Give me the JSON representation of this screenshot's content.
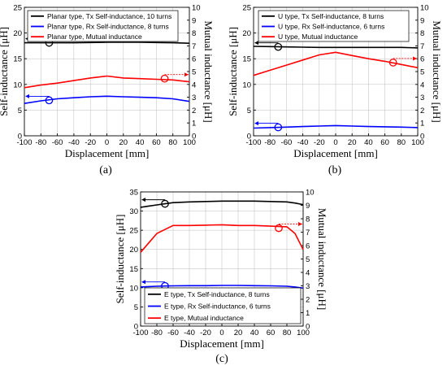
{
  "chart_data": [
    {
      "type": "line",
      "caption": "(a)",
      "xlabel": "Displacement [mm]",
      "ylabel": "Self-inductance [μH]",
      "y2label": "Mutual inductance [μH]",
      "xlim": [
        -100,
        100
      ],
      "ylim": [
        0,
        25
      ],
      "y2lim": [
        0,
        10
      ],
      "xticks": [
        -100,
        -80,
        -60,
        -40,
        -20,
        0,
        20,
        40,
        60,
        80,
        100
      ],
      "yticks": [
        0,
        5,
        10,
        15,
        20,
        25
      ],
      "y2ticks": [
        0,
        1,
        2,
        3,
        4,
        5,
        6,
        7,
        8,
        9,
        10
      ],
      "legend_position": "top-left",
      "x": [
        -100,
        -80,
        -60,
        -40,
        -20,
        0,
        20,
        40,
        60,
        80,
        100
      ],
      "series": [
        {
          "name": "Planar type, Tx Self-inductance, 10 turns",
          "color": "#000000",
          "axis": "left",
          "values": [
            18.1,
            18.1,
            18.1,
            18.1,
            18.15,
            18.2,
            18.2,
            18.2,
            18.15,
            18.1,
            18.0
          ]
        },
        {
          "name": "Planar type, Rx Self-inductance, 8 turns",
          "color": "#0000ff",
          "axis": "left",
          "values": [
            6.3,
            6.8,
            7.2,
            7.4,
            7.6,
            7.7,
            7.6,
            7.5,
            7.4,
            7.2,
            6.7
          ]
        },
        {
          "name": "Planar type, Mutual inductance",
          "color": "#ff0000",
          "axis": "right",
          "values": [
            3.75,
            3.95,
            4.1,
            4.3,
            4.5,
            4.65,
            4.5,
            4.45,
            4.4,
            4.35,
            4.2
          ]
        }
      ],
      "markers": [
        {
          "x": -70,
          "y": 18.1,
          "color": "#000000",
          "arrow": "left"
        },
        {
          "x": -70,
          "y": 6.9,
          "color": "#0000ff",
          "arrow": "left"
        },
        {
          "x": 70,
          "y": 4.45,
          "color": "#ff0000",
          "arrow": "right",
          "axis": "right"
        }
      ]
    },
    {
      "type": "line",
      "caption": "(b)",
      "xlabel": "Displacement [mm]",
      "ylabel": "Self-inductance [μH]",
      "y2label": "Mutual inductance [μH]",
      "xlim": [
        -100,
        100
      ],
      "ylim": [
        0,
        25
      ],
      "y2lim": [
        0,
        10
      ],
      "xticks": [
        -100,
        -80,
        -60,
        -40,
        -20,
        0,
        20,
        40,
        60,
        80,
        100
      ],
      "yticks": [
        0,
        5,
        10,
        15,
        20,
        25
      ],
      "y2ticks": [
        0,
        1,
        2,
        3,
        4,
        5,
        6,
        7,
        8,
        9,
        10
      ],
      "legend_position": "top-left",
      "x": [
        -100,
        -80,
        -60,
        -40,
        -20,
        0,
        20,
        40,
        60,
        80,
        100
      ],
      "series": [
        {
          "name": "U type, Tx Self-inductance, 8 turns",
          "color": "#000000",
          "axis": "left",
          "values": [
            17.4,
            17.35,
            17.3,
            17.25,
            17.2,
            17.2,
            17.2,
            17.2,
            17.2,
            17.2,
            17.1
          ]
        },
        {
          "name": "U type, Rx Self-inductance, 6 turns",
          "color": "#0000ff",
          "axis": "left",
          "values": [
            1.5,
            1.6,
            1.7,
            1.8,
            1.9,
            2.0,
            1.9,
            1.8,
            1.75,
            1.7,
            1.6
          ]
        },
        {
          "name": "U type, Mutual inductance",
          "color": "#ff0000",
          "axis": "right",
          "values": [
            4.7,
            5.1,
            5.5,
            5.9,
            6.3,
            6.5,
            6.25,
            6.0,
            5.8,
            5.55,
            5.3
          ]
        }
      ],
      "markers": [
        {
          "x": -70,
          "y": 17.3,
          "color": "#000000",
          "arrow": "left"
        },
        {
          "x": -70,
          "y": 1.65,
          "color": "#0000ff",
          "arrow": "left"
        },
        {
          "x": 70,
          "y": 5.7,
          "color": "#ff0000",
          "arrow": "right",
          "axis": "right"
        }
      ]
    },
    {
      "type": "line",
      "caption": "(c)",
      "xlabel": "Displacement [mm]",
      "ylabel": "Self-inductance [μH]",
      "y2label": "Mutual inductance [μH]",
      "xlim": [
        -100,
        100
      ],
      "ylim": [
        0,
        35
      ],
      "y2lim": [
        0,
        10
      ],
      "xticks": [
        -100,
        -80,
        -60,
        -40,
        -20,
        0,
        20,
        40,
        60,
        80,
        100
      ],
      "yticks": [
        0,
        5,
        10,
        15,
        20,
        25,
        30,
        35
      ],
      "y2ticks": [
        0,
        1,
        2,
        3,
        4,
        5,
        6,
        7,
        8,
        9,
        10
      ],
      "legend_position": "bottom-center",
      "x": [
        -100,
        -90,
        -80,
        -70,
        -60,
        -40,
        -20,
        0,
        20,
        40,
        60,
        80,
        90,
        100
      ],
      "series": [
        {
          "name": "E type, Tx Self-inductance, 8 turns",
          "color": "#000000",
          "axis": "left",
          "values": [
            31.0,
            31.3,
            31.6,
            31.9,
            32.2,
            32.4,
            32.5,
            32.6,
            32.6,
            32.6,
            32.5,
            32.4,
            32.1,
            31.7
          ]
        },
        {
          "name": "E type, Rx Self-inductance, 6 turns",
          "color": "#0000ff",
          "axis": "left",
          "values": [
            10.2,
            10.3,
            10.4,
            10.45,
            10.5,
            10.55,
            10.55,
            10.6,
            10.6,
            10.55,
            10.5,
            10.4,
            10.2,
            9.9
          ]
        },
        {
          "name": "E type, Mutual inductance",
          "color": "#ff0000",
          "axis": "right",
          "values": [
            5.5,
            6.2,
            6.9,
            7.2,
            7.5,
            7.5,
            7.52,
            7.55,
            7.5,
            7.5,
            7.45,
            7.4,
            6.9,
            5.7
          ]
        }
      ],
      "markers": [
        {
          "x": -70,
          "y": 31.9,
          "color": "#000000",
          "arrow": "left"
        },
        {
          "x": -70,
          "y": 10.45,
          "color": "#0000ff",
          "arrow": "left"
        },
        {
          "x": 70,
          "y": 7.3,
          "color": "#ff0000",
          "arrow": "right",
          "axis": "right"
        }
      ]
    }
  ]
}
